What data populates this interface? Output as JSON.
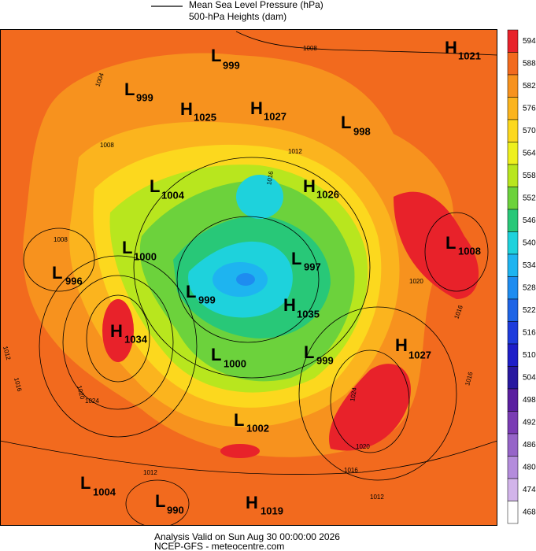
{
  "header": {
    "legend_line": "Mean Sea Level Pressure (hPa)",
    "subtitle": "500-hPa Heights (dam)"
  },
  "colorbar": [
    {
      "label": 594,
      "color": "#e8222a"
    },
    {
      "label": 588,
      "color": "#f26a1e"
    },
    {
      "label": 582,
      "color": "#f7921e"
    },
    {
      "label": 576,
      "color": "#fbb41e"
    },
    {
      "label": 570,
      "color": "#fcd81e"
    },
    {
      "label": 564,
      "color": "#eef01e"
    },
    {
      "label": 558,
      "color": "#b8e61e"
    },
    {
      "label": 552,
      "color": "#6cd23c"
    },
    {
      "label": 546,
      "color": "#28c878"
    },
    {
      "label": 540,
      "color": "#1ed2dc"
    },
    {
      "label": 534,
      "color": "#1eb4f0"
    },
    {
      "label": 528,
      "color": "#1e8cf0"
    },
    {
      "label": 522,
      "color": "#1e64e6"
    },
    {
      "label": 516,
      "color": "#1e3cdc"
    },
    {
      "label": 510,
      "color": "#1e1ec8"
    },
    {
      "label": 504,
      "color": "#2818a0"
    },
    {
      "label": 498,
      "color": "#5a1ea0"
    },
    {
      "label": 492,
      "color": "#7a3cb4"
    },
    {
      "label": 486,
      "color": "#9664c8"
    },
    {
      "label": 480,
      "color": "#b48cdc"
    },
    {
      "label": 474,
      "color": "#d2b4ea"
    },
    {
      "label": 468,
      "color": "#ffffff"
    }
  ],
  "centers": [
    {
      "type": "H",
      "pressure": 1021
    },
    {
      "type": "L",
      "pressure": 999
    },
    {
      "type": "L",
      "pressure": 999
    },
    {
      "type": "H",
      "pressure": 1025
    },
    {
      "type": "H",
      "pressure": 1027
    },
    {
      "type": "L",
      "pressure": 998
    },
    {
      "type": "L",
      "pressure": 1004
    },
    {
      "type": "H",
      "pressure": 1026
    },
    {
      "type": "L",
      "pressure": 1008
    },
    {
      "type": "L",
      "pressure": 1000
    },
    {
      "type": "L",
      "pressure": 996
    },
    {
      "type": "L",
      "pressure": 997
    },
    {
      "type": "L",
      "pressure": 999
    },
    {
      "type": "H",
      "pressure": 1035
    },
    {
      "type": "H",
      "pressure": 1034
    },
    {
      "type": "H",
      "pressure": 1027
    },
    {
      "type": "L",
      "pressure": 1000
    },
    {
      "type": "L",
      "pressure": 999
    },
    {
      "type": "L",
      "pressure": 1002
    },
    {
      "type": "L",
      "pressure": 1004
    },
    {
      "type": "L",
      "pressure": 990
    },
    {
      "type": "H",
      "pressure": 1019
    }
  ],
  "isobar_labels": [
    1008,
    1004,
    1008,
    1012,
    1016,
    1008,
    1012,
    1016,
    1020,
    1024,
    1024,
    1020,
    1016,
    1012,
    1012,
    1016,
    1020,
    1016
  ],
  "footer": {
    "valid": "Analysis Valid on Sun Aug 30 00:00:00 2026",
    "source": "NCEP-GFS - meteocentre.com"
  }
}
